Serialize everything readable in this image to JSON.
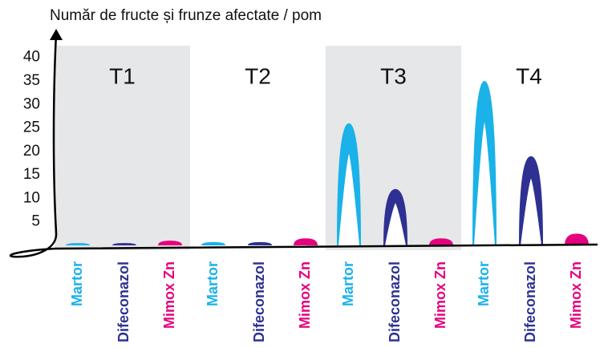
{
  "chart_data": {
    "type": "peak",
    "y_axis_label": "Număr de fructe și frunze afectate / pom",
    "categories": [
      "T1",
      "T2",
      "T3",
      "T4"
    ],
    "series": [
      {
        "name": "Martor",
        "color": "#1ab2e8",
        "values": [
          0.5,
          0.7,
          26,
          35
        ]
      },
      {
        "name": "Difeconazol",
        "color": "#2e3192",
        "values": [
          0.5,
          0.7,
          12,
          19
        ]
      },
      {
        "name": "Mimox Zn",
        "color": "#e5007e",
        "values": [
          1,
          1.5,
          1.5,
          2.5
        ]
      }
    ],
    "ylim": [
      0,
      42
    ],
    "yticks": [
      5,
      10,
      15,
      20,
      25,
      30,
      35,
      40
    ],
    "grid": false
  }
}
